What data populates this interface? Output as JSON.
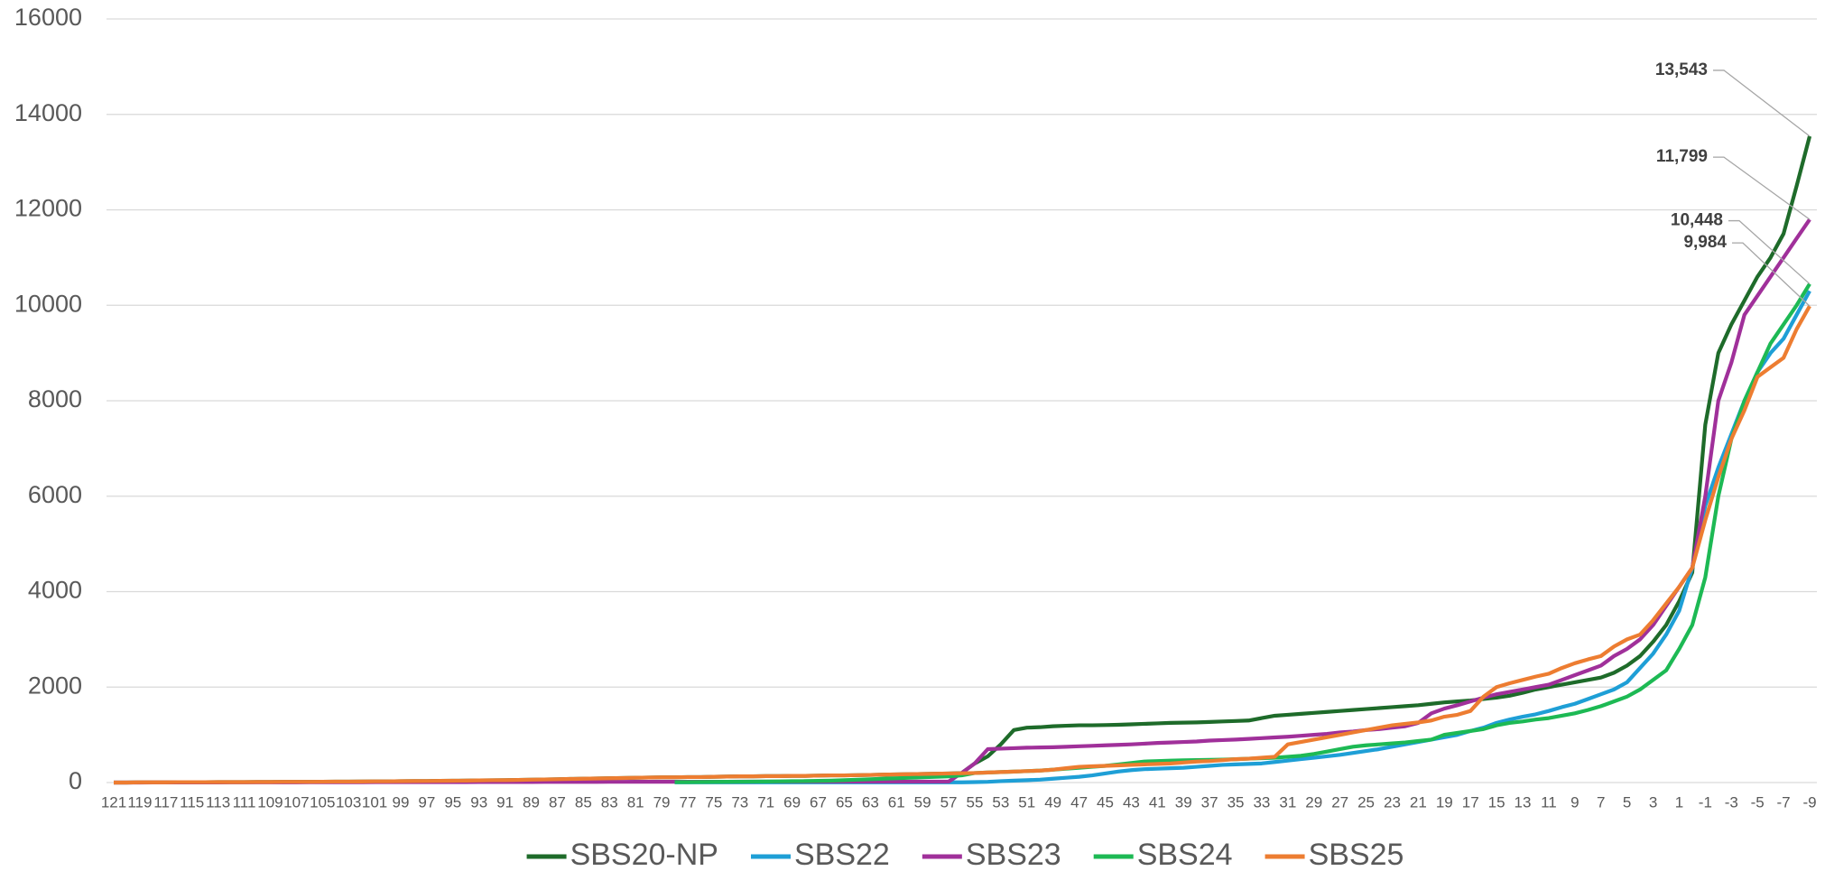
{
  "chart_data": {
    "type": "line",
    "categories": [
      "121",
      null,
      "119",
      null,
      "117",
      null,
      "115",
      null,
      "113",
      null,
      "111",
      null,
      "109",
      null,
      "107",
      null,
      "105",
      null,
      "103",
      null,
      "101",
      null,
      "99",
      null,
      "97",
      null,
      "95",
      null,
      "93",
      null,
      "91",
      null,
      "89",
      null,
      "87",
      null,
      "85",
      null,
      "83",
      null,
      "81",
      null,
      "79",
      null,
      "77",
      null,
      "75",
      null,
      "73",
      null,
      "71",
      null,
      "69",
      null,
      "67",
      null,
      "65",
      null,
      "63",
      null,
      "61",
      null,
      "59",
      null,
      "57",
      null,
      "55",
      null,
      "53",
      null,
      "51",
      null,
      "49",
      null,
      "47",
      null,
      "45",
      null,
      "43",
      null,
      "41",
      null,
      "39",
      null,
      "37",
      null,
      "35",
      null,
      "33",
      null,
      "31",
      null,
      "29",
      null,
      "27",
      null,
      "25",
      null,
      "23",
      null,
      "21",
      null,
      "19",
      null,
      "17",
      null,
      "15",
      null,
      "13",
      null,
      "11",
      null,
      "9",
      null,
      "7",
      null,
      "5",
      null,
      "3",
      null,
      "1",
      null,
      "-1",
      null,
      "-3",
      null,
      "-5",
      null,
      "-7",
      null,
      "-9"
    ],
    "ylim": [
      0,
      16000
    ],
    "yticks": [
      0,
      2000,
      4000,
      6000,
      8000,
      10000,
      12000,
      14000,
      16000
    ],
    "grid": true,
    "legend": "bottom",
    "series": [
      {
        "name": "SBS20-NP",
        "color": "#1e6b2a",
        "values": [
          0,
          0,
          5,
          5,
          5,
          8,
          8,
          8,
          10,
          10,
          10,
          12,
          12,
          15,
          15,
          15,
          18,
          20,
          20,
          22,
          25,
          25,
          28,
          30,
          32,
          35,
          38,
          40,
          45,
          48,
          50,
          55,
          60,
          65,
          70,
          75,
          80,
          85,
          90,
          95,
          100,
          105,
          110,
          110,
          115,
          115,
          120,
          125,
          130,
          130,
          135,
          135,
          140,
          140,
          145,
          150,
          150,
          155,
          160,
          165,
          170,
          175,
          180,
          185,
          190,
          200,
          400,
          550,
          800,
          1100,
          1150,
          1160,
          1180,
          1190,
          1200,
          1200,
          1205,
          1210,
          1220,
          1230,
          1240,
          1250,
          1255,
          1260,
          1270,
          1280,
          1290,
          1300,
          1350,
          1400,
          1420,
          1440,
          1460,
          1480,
          1500,
          1520,
          1540,
          1560,
          1580,
          1600,
          1620,
          1650,
          1680,
          1700,
          1720,
          1750,
          1780,
          1820,
          1880,
          1950,
          2000,
          2050,
          2100,
          2150,
          2200,
          2300,
          2450,
          2650,
          2950,
          3300,
          3800,
          4400,
          7500,
          9000,
          9600,
          10100,
          10600,
          11000,
          11500,
          12500,
          13543
        ],
        "value_labels": {
          "130": "13,543"
        }
      },
      {
        "name": "SBS22",
        "color": "#1e9fd6",
        "values": [
          null,
          null,
          null,
          null,
          null,
          null,
          null,
          null,
          null,
          null,
          null,
          null,
          null,
          null,
          null,
          null,
          null,
          null,
          null,
          null,
          null,
          null,
          null,
          null,
          null,
          null,
          null,
          null,
          null,
          null,
          null,
          null,
          null,
          null,
          null,
          null,
          null,
          null,
          null,
          null,
          null,
          null,
          null,
          5,
          5,
          5,
          5,
          5,
          5,
          5,
          5,
          5,
          5,
          5,
          5,
          5,
          5,
          5,
          5,
          5,
          5,
          5,
          5,
          5,
          5,
          5,
          10,
          15,
          30,
          40,
          50,
          60,
          80,
          100,
          120,
          150,
          190,
          230,
          260,
          280,
          290,
          300,
          310,
          330,
          350,
          370,
          380,
          390,
          400,
          430,
          460,
          490,
          520,
          550,
          580,
          620,
          660,
          700,
          750,
          800,
          850,
          900,
          950,
          1000,
          1080,
          1150,
          1250,
          1320,
          1380,
          1430,
          1500,
          1580,
          1650,
          1750,
          1850,
          1950,
          2100,
          2400,
          2700,
          3100,
          3600,
          4500,
          5800,
          6600,
          7300,
          8000,
          8600,
          9000,
          9300,
          9800,
          10300
        ]
      },
      {
        "name": "SBS23",
        "color": "#a0309a",
        "values": [
          0,
          0,
          0,
          2,
          2,
          2,
          3,
          3,
          3,
          4,
          4,
          4,
          5,
          5,
          5,
          6,
          6,
          6,
          7,
          7,
          8,
          8,
          8,
          9,
          9,
          10,
          10,
          10,
          11,
          11,
          12,
          12,
          12,
          13,
          13,
          14,
          14,
          14,
          15,
          15,
          16,
          16,
          16,
          17,
          17,
          18,
          18,
          18,
          19,
          19,
          20,
          20,
          20,
          20,
          20,
          20,
          20,
          20,
          20,
          20,
          20,
          20,
          20,
          20,
          20,
          200,
          400,
          700,
          710,
          720,
          730,
          735,
          740,
          750,
          760,
          770,
          780,
          790,
          800,
          815,
          830,
          840,
          850,
          860,
          880,
          890,
          900,
          915,
          930,
          945,
          960,
          980,
          1000,
          1020,
          1050,
          1070,
          1100,
          1120,
          1150,
          1180,
          1250,
          1450,
          1550,
          1620,
          1700,
          1780,
          1850,
          1900,
          1950,
          2000,
          2050,
          2150,
          2250,
          2350,
          2450,
          2650,
          2800,
          3000,
          3300,
          3700,
          4100,
          4500,
          6000,
          8000,
          8800,
          9800,
          10200,
          10600,
          11000,
          11400,
          11799
        ],
        "value_labels": {
          "130": "11,799"
        }
      },
      {
        "name": "SBS24",
        "color": "#1db954",
        "values": [
          null,
          null,
          null,
          null,
          null,
          null,
          null,
          null,
          null,
          null,
          null,
          null,
          null,
          null,
          null,
          null,
          null,
          null,
          null,
          null,
          null,
          null,
          null,
          null,
          null,
          null,
          null,
          null,
          null,
          null,
          null,
          null,
          null,
          null,
          null,
          null,
          null,
          null,
          null,
          null,
          null,
          null,
          null,
          10,
          10,
          12,
          14,
          16,
          18,
          20,
          22,
          25,
          28,
          30,
          35,
          40,
          50,
          60,
          70,
          80,
          90,
          100,
          110,
          120,
          130,
          150,
          200,
          210,
          220,
          230,
          240,
          250,
          270,
          290,
          310,
          330,
          350,
          380,
          410,
          440,
          450,
          460,
          465,
          470,
          475,
          480,
          490,
          500,
          510,
          520,
          540,
          560,
          600,
          650,
          700,
          750,
          780,
          800,
          820,
          840,
          870,
          900,
          1000,
          1040,
          1080,
          1120,
          1200,
          1250,
          1280,
          1320,
          1350,
          1400,
          1450,
          1520,
          1600,
          1700,
          1800,
          1950,
          2150,
          2350,
          2800,
          3300,
          4300,
          6000,
          7200,
          8000,
          8600,
          9200,
          9600,
          10000,
          10448
        ],
        "value_labels": {
          "130": "10,448"
        }
      },
      {
        "name": "SBS25",
        "color": "#ed7d31",
        "values": [
          0,
          0,
          5,
          5,
          5,
          8,
          8,
          8,
          10,
          10,
          10,
          12,
          12,
          15,
          15,
          15,
          18,
          20,
          20,
          22,
          25,
          25,
          28,
          30,
          32,
          35,
          38,
          40,
          45,
          48,
          50,
          55,
          60,
          65,
          70,
          75,
          80,
          85,
          90,
          95,
          100,
          105,
          110,
          110,
          115,
          115,
          120,
          125,
          130,
          130,
          135,
          135,
          140,
          140,
          145,
          150,
          150,
          155,
          160,
          165,
          170,
          175,
          180,
          185,
          190,
          195,
          200,
          210,
          220,
          230,
          240,
          250,
          270,
          300,
          330,
          340,
          350,
          360,
          370,
          380,
          390,
          400,
          420,
          440,
          450,
          470,
          490,
          500,
          520,
          540,
          800,
          850,
          900,
          950,
          1000,
          1050,
          1100,
          1150,
          1200,
          1230,
          1260,
          1300,
          1380,
          1420,
          1500,
          1800,
          2000,
          2080,
          2150,
          2220,
          2280,
          2400,
          2500,
          2580,
          2650,
          2850,
          3000,
          3100,
          3400,
          3750,
          4100,
          4500,
          5500,
          6400,
          7200,
          7800,
          8500,
          8700,
          8900,
          9500,
          9984
        ],
        "value_labels": {
          "130": "9,984"
        }
      }
    ]
  }
}
